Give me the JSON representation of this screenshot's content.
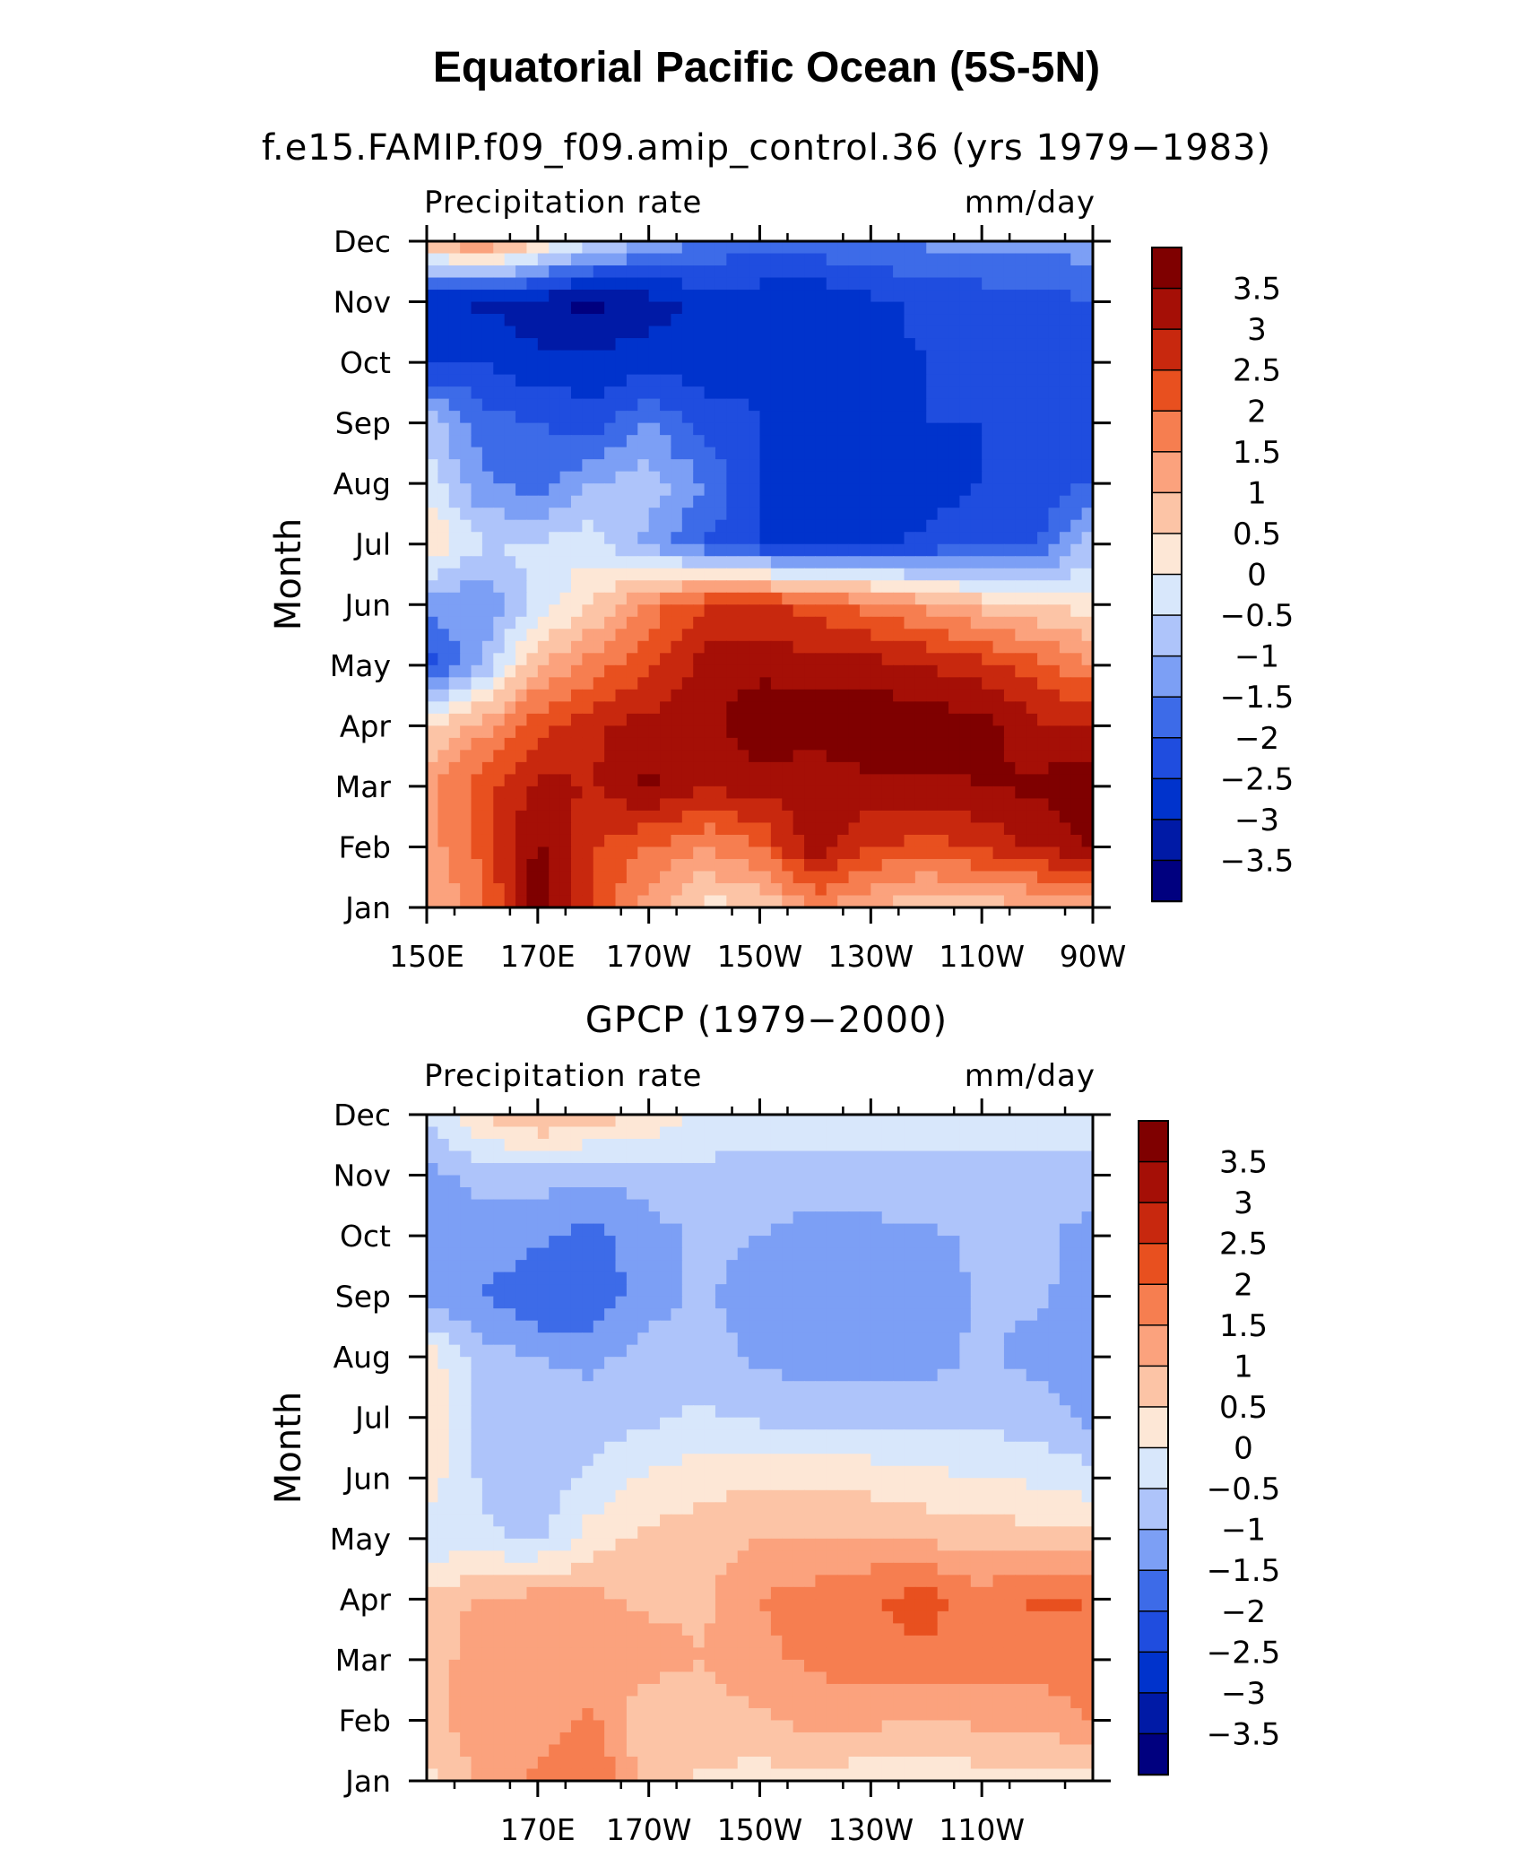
{
  "page": {
    "title": "Equatorial Pacific Ocean (5S-5N)",
    "panel1_subtitle": "f.e15.FAMIP.f09_f09.amip_control.36 (yrs 1979−1983)",
    "panel2_subtitle": "GPCP (1979−2000)"
  },
  "colors": {
    "palette": [
      "#00007f",
      "#001aa6",
      "#0033cc",
      "#1f4ddf",
      "#3d6be8",
      "#7c9ff5",
      "#aec4fa",
      "#d8e7fb",
      "#fde7d6",
      "#fcc4a6",
      "#fba27d",
      "#f67e50",
      "#e8501f",
      "#c8280e",
      "#a50f06",
      "#7f0000"
    ]
  },
  "chart_data": [
    {
      "type": "heatmap",
      "title": "Precipitation rate",
      "units": "mm/day",
      "ylabel": "Month",
      "x_tick_labels": [
        "150E",
        "170E",
        "170W",
        "150W",
        "130W",
        "110W",
        "90W"
      ],
      "y": [
        "Jan",
        "Feb",
        "Mar",
        "Apr",
        "May",
        "Jun",
        "Jul",
        "Aug",
        "Sep",
        "Oct",
        "Nov",
        "Dec"
      ],
      "colorbar_labels": [
        "3.5",
        "3",
        "2.5",
        "2",
        "1.5",
        "1",
        "0.5",
        "0",
        "−0.5",
        "−1",
        "−1.5",
        "−2",
        "−2.5",
        "−3",
        "−3.5"
      ],
      "x": [
        "150E",
        "160E",
        "170E",
        "180",
        "170W",
        "160W",
        "150W",
        "140W",
        "130W",
        "120W",
        "110W",
        "100W",
        "90W"
      ],
      "values": [
        [
          1.0,
          1.8,
          3.8,
          2.4,
          1.2,
          0.3,
          0.5,
          1.5,
          1.0,
          0.6,
          0.7,
          0.9,
          1.2
        ],
        [
          1.2,
          2.2,
          3.6,
          2.5,
          2.0,
          1.5,
          2.0,
          3.4,
          2.5,
          2.3,
          2.6,
          3.1,
          3.5
        ],
        [
          1.3,
          2.3,
          3.1,
          3.0,
          3.6,
          3.0,
          3.3,
          3.1,
          3.4,
          3.4,
          3.5,
          3.6,
          3.9
        ],
        [
          0.4,
          1.3,
          2.3,
          2.9,
          3.2,
          3.4,
          3.8,
          3.8,
          3.9,
          3.8,
          3.7,
          3.1,
          3.0
        ],
        [
          -2.3,
          -1.0,
          1.0,
          1.7,
          2.4,
          3.2,
          3.4,
          3.2,
          3.2,
          3.0,
          2.7,
          2.2,
          1.5
        ],
        [
          -1.2,
          -1.5,
          -0.3,
          0.5,
          1.7,
          2.5,
          2.6,
          2.3,
          1.8,
          1.3,
          0.8,
          0.5,
          0.2
        ],
        [
          0.6,
          -0.5,
          -0.4,
          -0.2,
          -1.2,
          -2.0,
          -2.5,
          -2.6,
          -2.6,
          -2.4,
          -2.2,
          -2.1,
          -0.7
        ],
        [
          -0.2,
          -1.4,
          -1.8,
          -1.0,
          -0.7,
          -1.5,
          -2.6,
          -2.8,
          -2.8,
          -2.7,
          -2.5,
          -2.3,
          -2.0
        ],
        [
          -0.7,
          -1.8,
          -2.0,
          -2.3,
          -1.5,
          -2.3,
          -2.5,
          -2.6,
          -2.7,
          -2.5,
          -2.5,
          -2.4,
          -2.3
        ],
        [
          -2.6,
          -2.5,
          -2.9,
          -2.8,
          -2.8,
          -2.7,
          -2.6,
          -2.7,
          -2.6,
          -2.5,
          -2.4,
          -2.4,
          -2.4
        ],
        [
          -2.9,
          -3.1,
          -3.3,
          -3.7,
          -3.2,
          -2.9,
          -2.8,
          -3.0,
          -2.6,
          -2.4,
          -2.3,
          -2.2,
          -2.0
        ],
        [
          1.0,
          1.8,
          0.6,
          -0.3,
          -1.0,
          -1.5,
          -1.8,
          -1.6,
          -1.5,
          -1.4,
          -1.3,
          -1.3,
          -1.2
        ]
      ]
    },
    {
      "type": "heatmap",
      "title": "Precipitation rate",
      "units": "mm/day",
      "ylabel": "Month",
      "x_tick_labels": [
        "170E",
        "170W",
        "150W",
        "130W",
        "110W"
      ],
      "y": [
        "Jan",
        "Feb",
        "Mar",
        "Apr",
        "May",
        "Jun",
        "Jul",
        "Aug",
        "Sep",
        "Oct",
        "Nov",
        "Dec"
      ],
      "colorbar_labels": [
        "3.5",
        "3",
        "2.5",
        "2",
        "1.5",
        "1",
        "0.5",
        "0",
        "−0.5",
        "−1",
        "−1.5",
        "−2",
        "−2.5",
        "−3",
        "−3.5"
      ],
      "x": [
        "150E",
        "160E",
        "170E",
        "180",
        "170W",
        "160W",
        "150W",
        "140W",
        "130W",
        "120W",
        "110W",
        "100W",
        "90W"
      ],
      "values": [
        [
          0.3,
          1.2,
          1.6,
          2.0,
          0.7,
          0.4,
          0.3,
          0.3,
          0.2,
          0.1,
          0.3,
          0.3,
          0.2
        ],
        [
          0.8,
          1.3,
          1.2,
          1.6,
          0.6,
          0.8,
          0.9,
          1.2,
          1.1,
          1.0,
          1.1,
          1.2,
          1.5
        ],
        [
          0.7,
          1.3,
          1.5,
          1.2,
          1.2,
          1.0,
          1.4,
          1.6,
          1.8,
          1.9,
          1.8,
          1.7,
          1.9
        ],
        [
          0.6,
          1.1,
          1.2,
          1.1,
          0.9,
          0.9,
          1.5,
          1.7,
          2.0,
          2.2,
          1.7,
          2.1,
          2.0
        ],
        [
          -0.3,
          -0.4,
          -0.6,
          0.3,
          0.6,
          0.8,
          1.0,
          1.0,
          1.0,
          0.9,
          0.8,
          0.7,
          0.6
        ],
        [
          0.3,
          -0.6,
          -0.8,
          -0.4,
          0.1,
          0.3,
          0.4,
          0.4,
          0.3,
          0.1,
          0.0,
          -0.1,
          -0.3
        ],
        [
          0.5,
          -0.7,
          -0.8,
          -0.8,
          -0.6,
          -0.4,
          -0.6,
          -0.8,
          -0.7,
          -0.6,
          -0.7,
          -0.7,
          -1.2
        ],
        [
          0.3,
          -0.8,
          -1.0,
          -1.1,
          -0.8,
          -0.8,
          -1.1,
          -1.2,
          -1.3,
          -1.2,
          -0.9,
          -1.2,
          -1.5
        ],
        [
          -1.2,
          -1.5,
          -2.0,
          -1.9,
          -1.2,
          -0.9,
          -1.3,
          -1.4,
          -1.4,
          -1.3,
          -0.9,
          -0.9,
          -1.3
        ],
        [
          -1.3,
          -1.1,
          -1.4,
          -1.7,
          -1.2,
          -0.9,
          -1.0,
          -1.3,
          -1.2,
          -1.1,
          -0.9,
          -0.8,
          -1.3
        ],
        [
          -1.1,
          -0.9,
          -0.8,
          -0.9,
          -0.8,
          -0.6,
          -0.7,
          -0.6,
          -0.6,
          -0.6,
          -0.6,
          -0.6,
          -0.6
        ],
        [
          -0.4,
          0.6,
          1.1,
          0.8,
          0.4,
          -0.2,
          -0.3,
          -0.3,
          -0.4,
          -0.3,
          -0.4,
          -0.4,
          -0.4
        ]
      ]
    }
  ]
}
